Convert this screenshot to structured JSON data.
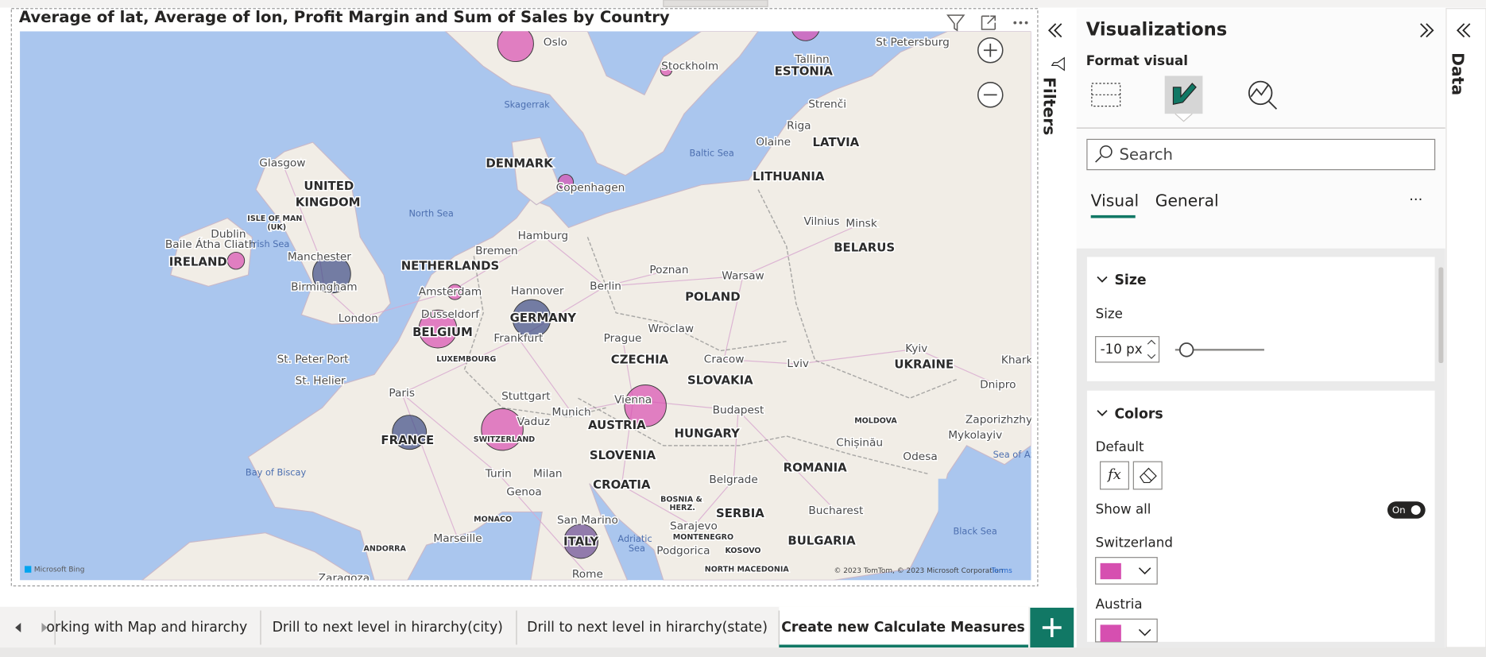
{
  "visual": {
    "title": "Average of lat, Average of lon, Profit Margin and Sum of Sales by Country"
  },
  "map": {
    "labels": [
      "Oslo",
      "St Petersburg",
      "Tallinn",
      "Stockholm",
      "ESTONIA",
      "Skagerrak",
      "Strenči",
      "Riga",
      "Baltic Sea",
      "Olaine",
      "LATVIA",
      "Glasgow",
      "DENMARK",
      "UNITED",
      "KINGDOM",
      "Copenhagen",
      "LITHUANIA",
      "North Sea",
      "ISLE OF MAN",
      "(UK)",
      "Dublin",
      "Baile Átha Cliath",
      "Irish Sea",
      "Hamburg",
      "Vilnius",
      "Minsk",
      "BELARUS",
      "Bremen",
      "IRELAND",
      "Manchester",
      "NETHERLANDS",
      "Amsterdam",
      "Hannover",
      "Berlin",
      "Poznan",
      "Warsaw",
      "Birmingham",
      "Dusseldorf",
      "GERMANY",
      "POLAND",
      "London",
      "BELGIUM",
      "Frankfurt",
      "Prague",
      "Wroclaw",
      "Kyiv",
      "LUXEMBOURG",
      "St. Peter Port",
      "CZECHIA",
      "Cracow",
      "Lviv",
      "UKRAINE",
      "Khark",
      "St. Helier",
      "SLOVAKIA",
      "Dnipro",
      "Paris",
      "Stuttgart",
      "Vienna",
      "Munich",
      "Budapest",
      "MOLDOVA",
      "Zaporizhzhy",
      "AUSTRIA",
      "Vaduz",
      "HUNGARY",
      "Chișinău",
      "Mykolayiv",
      "FRANCE",
      "SWITZERLAND",
      "Odesa",
      "Sea of Az",
      "SLOVENIA",
      "Bay of Biscay",
      "Turin",
      "Milan",
      "ROMANIA",
      "Belgrade",
      "CROATIA",
      "Genoa",
      "BOSNIA &",
      "HERZ.",
      "SERBIA",
      "Bucharest",
      "Sarajevo",
      "San Marino",
      "MONACO",
      "Black Sea",
      "Adriatic",
      "Sea",
      "MONTENEGRO",
      "Marseille",
      "ITALY",
      "Podgorica",
      "KOSOVO",
      "BULGARIA",
      "ANDORRA",
      "NORTH MACEDONIA",
      "Rome",
      "Zaragoza"
    ],
    "bing": "Microsoft Bing",
    "attribution": "© 2023 TomTom, © 2023 Microsoft Corporation",
    "terms": "Terms"
  },
  "filters_pane": {
    "label": "Filters"
  },
  "visualizations_pane": {
    "title": "Visualizations",
    "subtitle": "Format visual",
    "search_placeholder": "Search",
    "tabs": [
      "Visual",
      "General"
    ],
    "more": "···",
    "size_card": {
      "title": "Size",
      "field_label": "Size",
      "field_value": "-10 px"
    },
    "colors_card": {
      "title": "Colors",
      "default_label": "Default",
      "fx": "fx",
      "show_all": "Show all",
      "toggle": "On",
      "items": [
        "Switzerland",
        "Austria"
      ]
    }
  },
  "data_pane": {
    "label": "Data"
  },
  "page_tabs": [
    "orking with Map and hirarchy",
    "Drill to next level in hirarchy(city)",
    "Drill to next level in hirarchy(state)",
    "Create new Calculate Measures"
  ]
}
